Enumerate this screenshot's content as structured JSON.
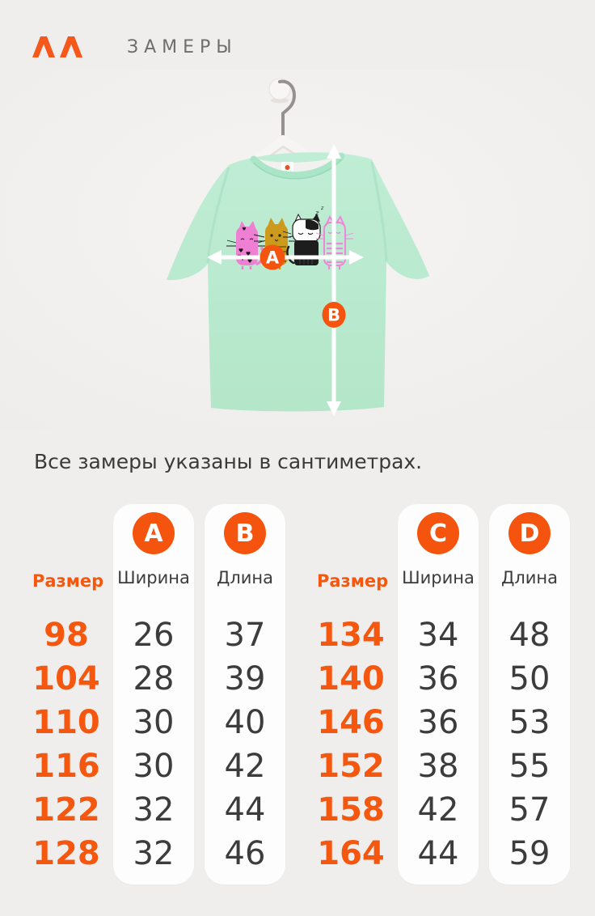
{
  "header": {
    "title": "ЗАМЕРЫ"
  },
  "photo": {
    "measure_a": "A",
    "measure_b": "B"
  },
  "note": "Все замеры указаны в сантиметрах.",
  "tables": [
    {
      "size_header": "Размер",
      "columns": [
        {
          "letter": "A",
          "label": "Ширина"
        },
        {
          "letter": "B",
          "label": "Длина"
        }
      ],
      "rows": [
        {
          "size": "98",
          "values": [
            "26",
            "37"
          ]
        },
        {
          "size": "104",
          "values": [
            "28",
            "39"
          ]
        },
        {
          "size": "110",
          "values": [
            "30",
            "40"
          ]
        },
        {
          "size": "116",
          "values": [
            "30",
            "42"
          ]
        },
        {
          "size": "122",
          "values": [
            "32",
            "44"
          ]
        },
        {
          "size": "128",
          "values": [
            "32",
            "46"
          ]
        }
      ]
    },
    {
      "size_header": "Размер",
      "columns": [
        {
          "letter": "C",
          "label": "Ширина"
        },
        {
          "letter": "D",
          "label": "Длина"
        }
      ],
      "rows": [
        {
          "size": "134",
          "values": [
            "34",
            "48"
          ]
        },
        {
          "size": "140",
          "values": [
            "36",
            "50"
          ]
        },
        {
          "size": "146",
          "values": [
            "36",
            "53"
          ]
        },
        {
          "size": "152",
          "values": [
            "38",
            "55"
          ]
        },
        {
          "size": "158",
          "values": [
            "42",
            "57"
          ]
        },
        {
          "size": "164",
          "values": [
            "44",
            "59"
          ]
        }
      ]
    }
  ],
  "colors": {
    "accent": "#F5570F",
    "logo_orange": "#F5581A",
    "title_gray": "#6E6E6E",
    "text_dark": "#3B3B3B",
    "page_bg": "#EFEEEC",
    "column_bg": "#FDFDFD",
    "shirt_mint": "#BCE9D1"
  }
}
